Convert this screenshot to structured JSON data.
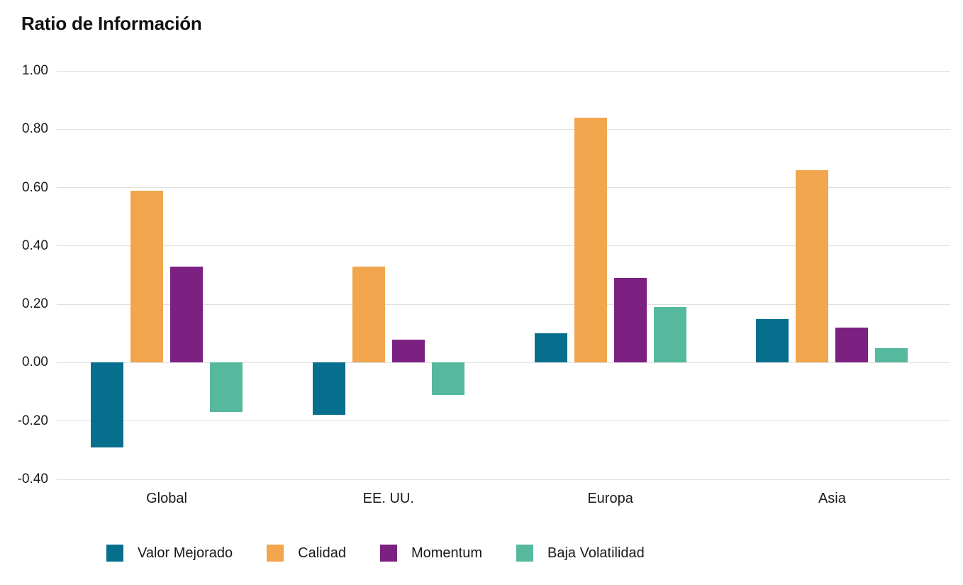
{
  "chart_data": {
    "type": "bar",
    "title": "Ratio de Información",
    "categories": [
      "Global",
      "EE. UU.",
      "Europa",
      "Asia"
    ],
    "series": [
      {
        "name": "Valor Mejorado",
        "color": "#066F8D",
        "values": [
          -0.29,
          -0.18,
          0.1,
          0.15
        ]
      },
      {
        "name": "Calidad",
        "color": "#F1A64D",
        "values": [
          0.59,
          0.33,
          0.84,
          0.66
        ]
      },
      {
        "name": "Momentum",
        "color": "#7C2182",
        "values": [
          0.33,
          0.08,
          0.29,
          0.12
        ]
      },
      {
        "name": "Baja Volatilidad",
        "color": "#56B99D",
        "values": [
          -0.17,
          -0.11,
          0.19,
          0.05
        ]
      }
    ],
    "y_axis": {
      "min": -0.4,
      "max": 1.0,
      "step": 0.2,
      "decimals": 2
    },
    "xlabel": "",
    "ylabel": "",
    "grid": "horizontal",
    "legend_position": "bottom",
    "colors": {
      "background": "#FFFFFF",
      "gridline": "#E0E0E0",
      "text": "#1A1A1A",
      "title": "#111111"
    }
  }
}
